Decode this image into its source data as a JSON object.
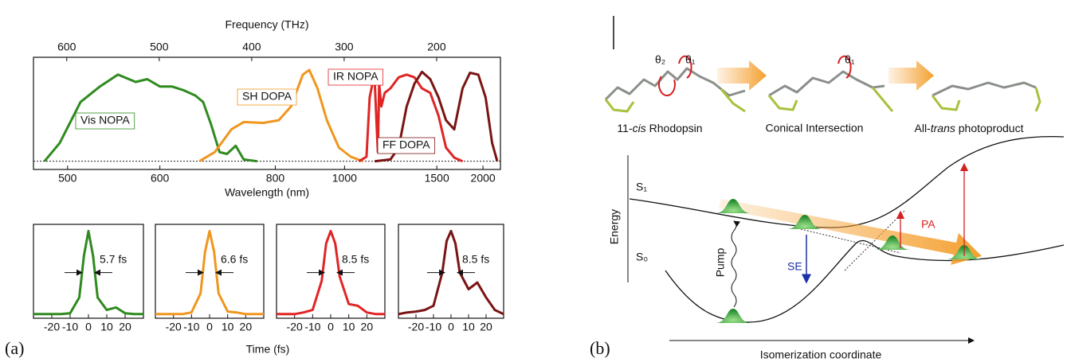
{
  "panel_a": {
    "label": "(a)",
    "time_label": "Time (fs)"
  },
  "chart_data": [
    {
      "type": "line",
      "xlabel": "Wavelength (nm)",
      "x2label": "Frequency (THz)",
      "xscale": "reciprocal",
      "xlim": [
        471,
        2288
      ],
      "xticks": [
        500,
        600,
        800,
        1000,
        1500,
        2000
      ],
      "x2lim": [
        636,
        131
      ],
      "x2ticks": [
        600,
        500,
        400,
        300,
        200
      ],
      "ylim": [
        -0.09,
        1.14
      ],
      "series": [
        {
          "name": "Vis NOPA",
          "color": "#2f8a1f",
          "x": [
            480,
            493,
            512,
            531,
            550,
            570,
            584,
            600,
            616,
            632,
            650,
            662,
            675,
            689,
            702,
            718,
            733,
            760
          ],
          "values": [
            0,
            0.2,
            0.65,
            0.82,
            0.95,
            0.87,
            0.9,
            0.82,
            0.82,
            0.78,
            0.72,
            0.65,
            0.4,
            0.1,
            0.08,
            0.17,
            0.02,
            0
          ]
        },
        {
          "name": "SH DOPA",
          "color": "#f0961e",
          "x": [
            656,
            681,
            710,
            733,
            773,
            808,
            838,
            869,
            887,
            911,
            940,
            980,
            1023,
            1071
          ],
          "values": [
            0,
            0.1,
            0.35,
            0.43,
            0.42,
            0.45,
            0.6,
            0.95,
            1,
            0.8,
            0.45,
            0.15,
            0.05,
            0
          ]
        },
        {
          "name": "IR NOPA",
          "color": "#e02525",
          "x": [
            1055,
            1086,
            1100,
            1112,
            1123,
            1131,
            1137,
            1143,
            1153,
            1170,
            1199,
            1243,
            1289,
            1338,
            1388,
            1448,
            1514,
            1578,
            1656,
            1743
          ],
          "values": [
            0,
            0.05,
            0.7,
            0.85,
            0.85,
            0.4,
            0.1,
            0.85,
            0.6,
            0.75,
            0.8,
            0.92,
            0.95,
            0.92,
            0.8,
            0.75,
            0.5,
            0.15,
            0.04,
            0
          ]
        },
        {
          "name": "FF DOPA",
          "color": "#7a1414",
          "x": [
            1122,
            1199,
            1243,
            1289,
            1338,
            1388,
            1448,
            1514,
            1578,
            1656,
            1743,
            1828,
            1934,
            2039,
            2141,
            2230
          ],
          "values": [
            0,
            0.02,
            0.15,
            0.6,
            0.85,
            0.98,
            0.9,
            0.7,
            0.45,
            0.35,
            0.8,
            0.97,
            0.95,
            0.7,
            0.2,
            0
          ]
        }
      ]
    },
    {
      "type": "line",
      "fwhm_label": "5.7 fs",
      "xlim": [
        -30,
        30
      ],
      "xticks": [
        -20,
        -10,
        0,
        10,
        20
      ],
      "ylim": [
        -0.05,
        1.08
      ],
      "x": [
        -30,
        -25,
        -20,
        -15,
        -10,
        -5,
        -2.5,
        0,
        2.5,
        5,
        10,
        15,
        20,
        25,
        30
      ],
      "series": [
        {
          "color": "#2f8a1f",
          "values": [
            0,
            0,
            0,
            0,
            0.01,
            0.2,
            0.7,
            1,
            0.7,
            0.2,
            0.05,
            0.08,
            0.01,
            0,
            0
          ]
        }
      ]
    },
    {
      "type": "line",
      "fwhm_label": "6.6 fs",
      "xlim": [
        -30,
        30
      ],
      "xticks": [
        -20,
        -10,
        0,
        10,
        20
      ],
      "ylim": [
        -0.05,
        1.08
      ],
      "x": [
        -30,
        -25,
        -20,
        -15,
        -10,
        -5,
        -2.5,
        0,
        2.5,
        5,
        10,
        15,
        20,
        25,
        30
      ],
      "series": [
        {
          "color": "#f0961e",
          "values": [
            0,
            0,
            0,
            0,
            0.02,
            0.25,
            0.75,
            1,
            0.75,
            0.25,
            0.03,
            0.02,
            0,
            0,
            0
          ]
        }
      ]
    },
    {
      "type": "line",
      "fwhm_label": "8.5 fs",
      "xlim": [
        -30,
        30
      ],
      "xticks": [
        -20,
        -10,
        0,
        10,
        20
      ],
      "ylim": [
        -0.05,
        1.08
      ],
      "x": [
        -30,
        -25,
        -20,
        -15,
        -10,
        -5,
        -2.5,
        0,
        2.5,
        5,
        10,
        15,
        20,
        25,
        30
      ],
      "series": [
        {
          "color": "#e02525",
          "values": [
            0,
            0,
            0,
            0.02,
            0.05,
            0.4,
            0.85,
            1,
            0.85,
            0.45,
            0.12,
            0.1,
            0.02,
            0,
            0
          ]
        }
      ]
    },
    {
      "type": "line",
      "fwhm_label": "8.5 fs",
      "xlim": [
        -30,
        30
      ],
      "xticks": [
        -20,
        -10,
        0,
        10,
        20
      ],
      "ylim": [
        -0.05,
        1.08
      ],
      "x": [
        -30,
        -25,
        -20,
        -15,
        -10,
        -5,
        -2.5,
        0,
        2.5,
        5,
        10,
        15,
        20,
        25,
        30
      ],
      "series": [
        {
          "color": "#7a1414",
          "values": [
            0,
            0.02,
            0.03,
            0.05,
            0.1,
            0.5,
            0.88,
            1,
            0.85,
            0.5,
            0.3,
            0.38,
            0.2,
            0.05,
            0
          ]
        }
      ]
    }
  ],
  "panel_b": {
    "label": "(b)",
    "theta2": "θ₂",
    "theta1": "θ₁",
    "theta1_ci": "θ₁",
    "rhodopsin": [
      "11-",
      "cis",
      " Rhodopsin"
    ],
    "conical": "Conical Intersection",
    "photoproduct": [
      "All-",
      "trans",
      " photoproduct"
    ],
    "energy": "Energy",
    "s1": "S₁",
    "s0": "S₀",
    "pump": "Pump",
    "se": "SE",
    "pa": "PA",
    "coordinate": "Isomerization coordinate"
  }
}
